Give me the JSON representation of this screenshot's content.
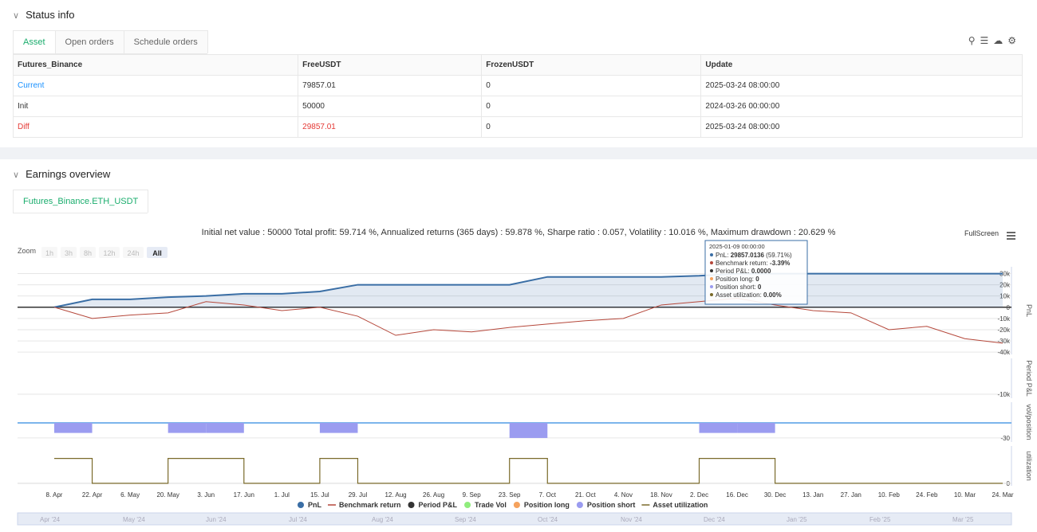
{
  "status": {
    "title": "Status info",
    "tabs": [
      "Asset",
      "Open orders",
      "Schedule orders"
    ],
    "table": {
      "headers": [
        "Futures_Binance",
        "FreeUSDT",
        "FrozenUSDT",
        "Update"
      ],
      "rows": [
        [
          "Current",
          "79857.01",
          "0",
          "2025-03-24 08:00:00"
        ],
        [
          "Init",
          "50000",
          "0",
          "2024-03-26 00:00:00"
        ],
        [
          "Diff",
          "29857.01",
          "0",
          "2025-03-24 08:00:00"
        ]
      ]
    }
  },
  "earnings": {
    "title": "Earnings overview",
    "tab": "Futures_Binance.ETH_USDT",
    "summary": "Initial net value : 50000 Total profit: 59.714 %, Annualized returns (365 days) : 59.878 %, Sharpe ratio : 0.057, Volatility : 10.016 %, Maximum drawdown : 20.629 %",
    "fullscreen": "FullScreen",
    "zoom_label": "Zoom",
    "zoom_buttons": [
      "1h",
      "3h",
      "8h",
      "12h",
      "24h",
      "All"
    ],
    "tooltip": {
      "title": "2025-01-09 00:00:00",
      "lines": [
        {
          "label": "PnL: ",
          "value": "29857.0136",
          "note": " (59.71%)",
          "color": "#3a6ea5"
        },
        {
          "label": "Benchmark return: ",
          "value": "-3.39%",
          "note": "",
          "color": "#b5473a"
        },
        {
          "label": "Period P&L: ",
          "value": "0.0000",
          "note": "",
          "color": "#333333"
        },
        {
          "label": "Position long: ",
          "value": "0",
          "note": "",
          "color": "#f5a25d"
        },
        {
          "label": "Position short: ",
          "value": "0",
          "note": "",
          "color": "#9b9cf0"
        },
        {
          "label": "Asset utilization: ",
          "value": "0.00%",
          "note": "",
          "color": "#7a6a2a"
        }
      ]
    },
    "navigator": [
      "Apr '24",
      "May '24",
      "Jun '24",
      "Jul '24",
      "Aug '24",
      "Sep '24",
      "Oct '24",
      "Nov '24",
      "Dec '24",
      "Jan '25",
      "Feb '25",
      "Mar '25"
    ],
    "legend": [
      {
        "name": "PnL",
        "color": "#3a6ea5"
      },
      {
        "name": "Benchmark return",
        "color": "#b5473a"
      },
      {
        "name": "Period P&L",
        "color": "#333333"
      },
      {
        "name": "Trade Vol",
        "color": "#90ed7d"
      },
      {
        "name": "Position long",
        "color": "#f5a25d"
      },
      {
        "name": "Position short",
        "color": "#9b9cf0"
      },
      {
        "name": "Asset utilization",
        "color": "#7a6a2a"
      }
    ]
  },
  "chart_data": {
    "type": "line",
    "x": [
      "8. Apr",
      "22. Apr",
      "6. May",
      "20. May",
      "3. Jun",
      "17. Jun",
      "1. Jul",
      "15. Jul",
      "29. Jul",
      "12. Aug",
      "26. Aug",
      "9. Sep",
      "23. Sep",
      "7. Oct",
      "21. Oct",
      "4. Nov",
      "18. Nov",
      "2. Dec",
      "16. Dec",
      "30. Dec",
      "13. Jan",
      "27. Jan",
      "10. Feb",
      "24. Feb",
      "10. Mar",
      "24. Mar"
    ],
    "panels": [
      {
        "axis_label": "PnL",
        "ylim": [
          -42000,
          36000
        ],
        "yticks": [
          {
            "value": 30000,
            "label": "30k"
          },
          {
            "value": 20000,
            "label": "20k"
          },
          {
            "value": 10000,
            "label": "10k"
          },
          0,
          {
            "value": -10000,
            "label": "-10k"
          },
          {
            "value": -20000,
            "label": "-20k"
          },
          {
            "value": -30000,
            "label": "-30k"
          },
          {
            "value": -40000,
            "label": "-40k"
          }
        ],
        "series": [
          {
            "name": "PnL",
            "color": "#3a6ea5",
            "values": [
              0,
              7000,
              7000,
              9000,
              10000,
              12000,
              12000,
              14000,
              20000,
              20000,
              20000,
              20000,
              20000,
              27000,
              27000,
              27000,
              27000,
              28000,
              29857,
              29857,
              29857,
              29857,
              29857,
              29857,
              29857,
              29857
            ]
          },
          {
            "name": "Benchmark return",
            "color": "#b5473a",
            "values": [
              0,
              -10000,
              -7000,
              -5000,
              5000,
              2000,
              -3000,
              0,
              -8000,
              -25000,
              -20000,
              -22000,
              -18000,
              -15000,
              -12000,
              -10000,
              2000,
              5000,
              8000,
              2000,
              -3000,
              -5000,
              -20000,
              -17000,
              -28000,
              -32000
            ]
          }
        ]
      },
      {
        "axis_label": "Period P&L",
        "ylim": [
          -12000,
          8000
        ],
        "yticks": [
          {
            "value": -10000,
            "label": "-10k"
          }
        ],
        "series": []
      },
      {
        "axis_label": "vol/position",
        "ylim": [
          -38,
          41
        ],
        "yticks": [
          -30
        ],
        "series": [
          {
            "name": "Position short",
            "color": "#9b9cf0",
            "values": [
              -20,
              0,
              0,
              -20,
              -20,
              0,
              0,
              -20,
              0,
              0,
              0,
              0,
              -30,
              0,
              0,
              0,
              0,
              -20,
              -20,
              0,
              0,
              0,
              0,
              0,
              0,
              0
            ]
          }
        ]
      },
      {
        "axis_label": "utilization",
        "ylim": [
          -10,
          150
        ],
        "yticks": [
          0
        ],
        "series": [
          {
            "name": "Asset utilization",
            "color": "#7a6a2a",
            "values": [
              100,
              0,
              0,
              100,
              100,
              0,
              0,
              100,
              0,
              0,
              0,
              0,
              100,
              0,
              0,
              0,
              0,
              100,
              100,
              0,
              0,
              0,
              0,
              0,
              0,
              0
            ]
          }
        ]
      }
    ]
  }
}
